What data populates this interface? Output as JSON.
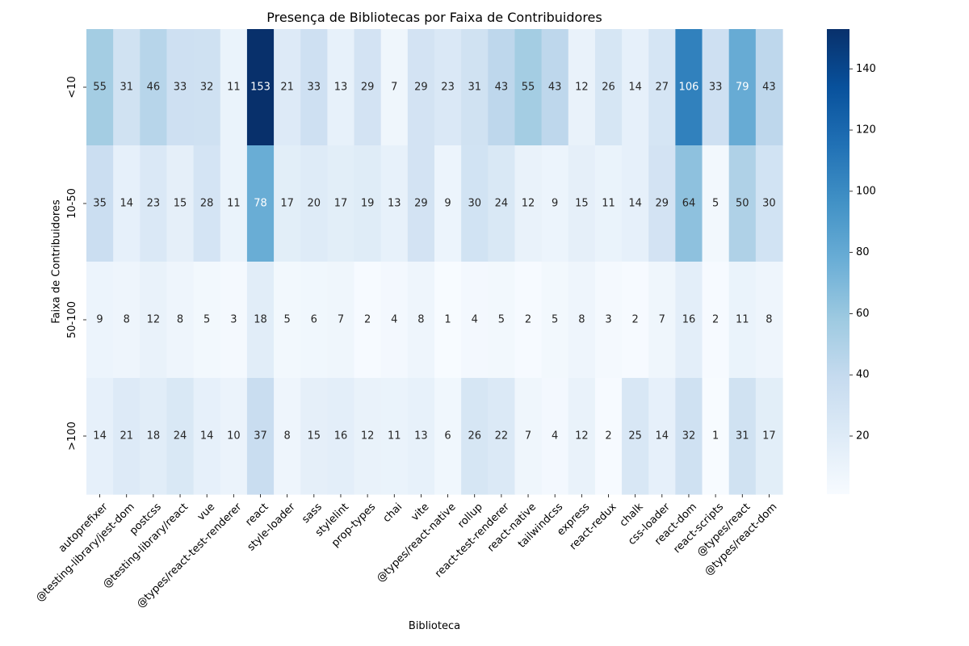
{
  "chart_data": {
    "type": "heatmap",
    "title": "Presença de Bibliotecas por Faixa de Contribuidores",
    "xlabel": "Biblioteca",
    "ylabel": "Faixa de Contribuidores",
    "columns": [
      "autoprefixer",
      "@testing-library/jest-dom",
      "postcss",
      "@testing-library/react",
      "vue",
      "@types/react-test-renderer",
      "react",
      "style-loader",
      "sass",
      "stylelint",
      "prop-types",
      "chai",
      "vite",
      "@types/react-native",
      "rollup",
      "react-test-renderer",
      "react-native",
      "tailwindcss",
      "express",
      "react-redux",
      "chalk",
      "css-loader",
      "react-dom",
      "react-scripts",
      "@types/react",
      "@types/react-dom"
    ],
    "rows": [
      "<10",
      "10-50",
      "50-100",
      ">100"
    ],
    "values": [
      [
        55,
        31,
        46,
        33,
        32,
        11,
        153,
        21,
        33,
        13,
        29,
        7,
        29,
        23,
        31,
        43,
        55,
        43,
        12,
        26,
        14,
        27,
        106,
        33,
        79,
        43
      ],
      [
        35,
        14,
        23,
        15,
        28,
        11,
        78,
        17,
        20,
        17,
        19,
        13,
        29,
        9,
        30,
        24,
        12,
        9,
        15,
        11,
        14,
        29,
        64,
        5,
        50,
        30
      ],
      [
        9,
        8,
        12,
        8,
        5,
        3,
        18,
        5,
        6,
        7,
        2,
        4,
        8,
        1,
        4,
        5,
        2,
        5,
        8,
        3,
        2,
        7,
        16,
        2,
        11,
        8
      ],
      [
        14,
        21,
        18,
        24,
        14,
        10,
        37,
        8,
        15,
        16,
        12,
        11,
        13,
        6,
        26,
        22,
        7,
        4,
        12,
        2,
        25,
        14,
        32,
        1,
        31,
        17
      ]
    ],
    "vmin": 1,
    "vmax": 153,
    "colormap": "Blues",
    "colorbar_ticks": [
      20,
      40,
      60,
      80,
      100,
      120,
      140
    ],
    "annotated": true
  }
}
